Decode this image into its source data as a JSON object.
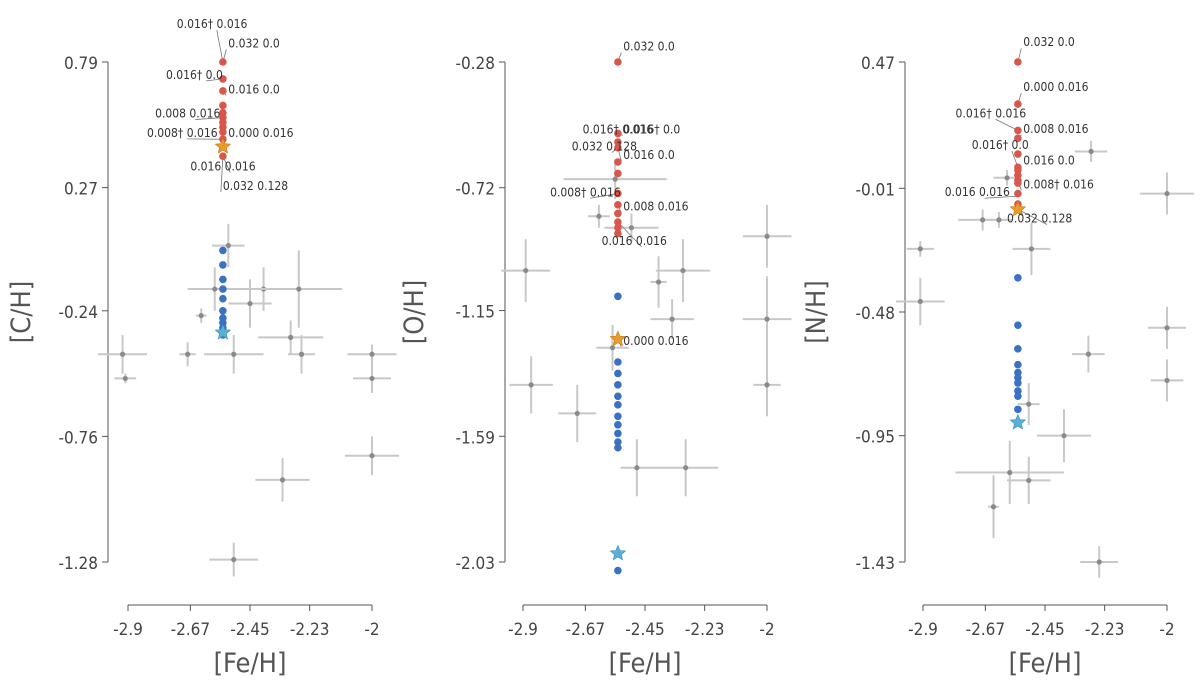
{
  "chart_data": [
    {
      "type": "scatter",
      "xlabel": "[Fe/H]",
      "ylabel": "[C/H]",
      "xticks": [
        -2.9,
        -2.67,
        -2.45,
        -2.23,
        -2
      ],
      "xtick_labels": [
        "-2.9",
        "-2.67",
        "-2.45",
        "-2.23",
        "-2"
      ],
      "yticks": [
        0.79,
        0.27,
        -0.24,
        -0.76,
        -1.28
      ],
      "ytick_labels": [
        "0.79",
        "0.27",
        "-0.24",
        "-0.76",
        "-1.28"
      ],
      "xlim": [
        -2.98,
        -1.95
      ],
      "ylim": [
        -1.38,
        0.95
      ],
      "observations": [
        {
          "x": -2.53,
          "y": 0.03,
          "xerr": 0.06,
          "yerr": 0.09
        },
        {
          "x": -2.4,
          "y": -0.15,
          "xerr": 0.09,
          "yerr": 0.09
        },
        {
          "x": -2.45,
          "y": -0.21,
          "xerr": 0.08,
          "yerr": 0.1
        },
        {
          "x": -2.27,
          "y": -0.15,
          "xerr": 0.16,
          "yerr": 0.16
        },
        {
          "x": -2.58,
          "y": -0.15,
          "xerr": 0.1,
          "yerr": 0.09
        },
        {
          "x": -2.63,
          "y": -0.26,
          "xerr": 0.02,
          "yerr": 0.03
        },
        {
          "x": -2.92,
          "y": -0.42,
          "xerr": 0.09,
          "yerr": 0.08
        },
        {
          "x": -2.68,
          "y": -0.42,
          "xerr": 0.03,
          "yerr": 0.05
        },
        {
          "x": -2.51,
          "y": -0.42,
          "xerr": 0.11,
          "yerr": 0.08
        },
        {
          "x": -2.3,
          "y": -0.35,
          "xerr": 0.12,
          "yerr": 0.07
        },
        {
          "x": -2.26,
          "y": -0.42,
          "xerr": 0.05,
          "yerr": 0.08
        },
        {
          "x": -2.0,
          "y": -0.42,
          "xerr": 0.09,
          "yerr": 0.04
        },
        {
          "x": -2.91,
          "y": -0.52,
          "xerr": 0.04,
          "yerr": 0.02
        },
        {
          "x": -2.0,
          "y": -0.52,
          "xerr": 0.07,
          "yerr": 0.06
        },
        {
          "x": -2.0,
          "y": -0.84,
          "xerr": 0.1,
          "yerr": 0.08
        },
        {
          "x": -2.33,
          "y": -0.94,
          "xerr": 0.1,
          "yerr": 0.09
        },
        {
          "x": -2.51,
          "y": -1.27,
          "xerr": 0.09,
          "yerr": 0.07
        }
      ],
      "model_red": [
        0.79,
        0.72,
        0.67,
        0.61,
        0.58,
        0.56,
        0.54,
        0.52,
        0.5,
        0.47,
        0.44,
        0.4
      ],
      "model_blue": [
        0.01,
        -0.05,
        -0.11,
        -0.15,
        -0.19,
        -0.24,
        -0.27,
        -0.29,
        -0.31,
        -0.34
      ],
      "model_x": -2.55,
      "star_orange": {
        "x": -2.55,
        "y": 0.44
      },
      "star_blue": {
        "x": -2.55,
        "y": -0.33
      },
      "annotations": [
        {
          "text": "0.016† 0.016",
          "x": -2.55,
          "y": 0.79,
          "tx": -2.72,
          "ty": 0.93
        },
        {
          "text": "0.032 0.0",
          "x": -2.55,
          "y": 0.79,
          "tx": -2.53,
          "ty": 0.85
        },
        {
          "text": "0.016† 0.0",
          "x": -2.55,
          "y": 0.72,
          "tx": -2.76,
          "ty": 0.72
        },
        {
          "text": "0.016 0.0",
          "x": -2.55,
          "y": 0.67,
          "tx": -2.53,
          "ty": 0.66
        },
        {
          "text": "0.008 0.016",
          "x": -2.55,
          "y": 0.56,
          "tx": -2.8,
          "ty": 0.56
        },
        {
          "text": "0.008† 0.016",
          "x": -2.55,
          "y": 0.47,
          "tx": -2.83,
          "ty": 0.48
        },
        {
          "text": "0.000 0.016",
          "x": -2.55,
          "y": 0.47,
          "tx": -2.53,
          "ty": 0.48
        },
        {
          "text": "0.016 0.016",
          "x": -2.55,
          "y": 0.4,
          "tx": -2.67,
          "ty": 0.34
        },
        {
          "text": "0.032 0.128",
          "x": -2.55,
          "y": 0.4,
          "tx": -2.55,
          "ty": 0.26
        }
      ]
    },
    {
      "type": "scatter",
      "xlabel": "[Fe/H]",
      "ylabel": "[O/H]",
      "xticks": [
        -2.9,
        -2.67,
        -2.45,
        -2.23,
        -2
      ],
      "xtick_labels": [
        "-2.9",
        "-2.67",
        "-2.45",
        "-2.23",
        "-2"
      ],
      "yticks": [
        -0.28,
        -0.72,
        -1.15,
        -1.59,
        -2.03
      ],
      "ytick_labels": [
        "-0.28",
        "-0.72",
        "-1.15",
        "-1.59",
        "-2.03"
      ],
      "xlim": [
        -2.98,
        -1.95
      ],
      "ylim": [
        -2.17,
        -0.14
      ],
      "observations": [
        {
          "x": -2.56,
          "y": -0.69,
          "xerr": 0.19,
          "yerr": 0.07
        },
        {
          "x": -2.62,
          "y": -0.82,
          "xerr": 0.04,
          "yerr": 0.04
        },
        {
          "x": -2.5,
          "y": -0.86,
          "xerr": 0.1,
          "yerr": 0.05
        },
        {
          "x": -2.0,
          "y": -0.89,
          "xerr": 0.09,
          "yerr": 0.11
        },
        {
          "x": -2.89,
          "y": -1.01,
          "xerr": 0.09,
          "yerr": 0.11
        },
        {
          "x": -2.31,
          "y": -1.01,
          "xerr": 0.1,
          "yerr": 0.11
        },
        {
          "x": -2.4,
          "y": -1.05,
          "xerr": 0.03,
          "yerr": 0.09
        },
        {
          "x": -2.35,
          "y": -1.18,
          "xerr": 0.08,
          "yerr": 0.07
        },
        {
          "x": -2.0,
          "y": -1.18,
          "xerr": 0.09,
          "yerr": 0.15
        },
        {
          "x": -2.57,
          "y": -1.28,
          "xerr": 0.06,
          "yerr": 0.08
        },
        {
          "x": -2.87,
          "y": -1.41,
          "xerr": 0.08,
          "yerr": 0.1
        },
        {
          "x": -2.0,
          "y": -1.41,
          "xerr": 0.05,
          "yerr": 0.11
        },
        {
          "x": -2.7,
          "y": -1.51,
          "xerr": 0.07,
          "yerr": 0.1
        },
        {
          "x": -2.48,
          "y": -1.7,
          "xerr": 0.06,
          "yerr": 0.1
        },
        {
          "x": -2.3,
          "y": -1.7,
          "xerr": 0.12,
          "yerr": 0.1
        }
      ],
      "model_red": [
        -0.28,
        -0.53,
        -0.56,
        -0.58,
        -0.63,
        -0.67,
        -0.74,
        -0.78,
        -0.81,
        -0.84,
        -0.86,
        -0.88
      ],
      "model_blue": [
        -1.1,
        -1.33,
        -1.37,
        -1.41,
        -1.45,
        -1.48,
        -1.52,
        -1.55,
        -1.58,
        -1.61,
        -1.63,
        -2.06
      ],
      "model_x": -2.55,
      "star_orange": {
        "x": -2.55,
        "y": -1.25
      },
      "star_blue": {
        "x": -2.55,
        "y": -2.0
      },
      "annotations": [
        {
          "text": "0.032 0.0",
          "x": -2.55,
          "y": -0.28,
          "tx": -2.53,
          "ty": -0.24
        },
        {
          "text": "0.016† 0.016",
          "x": -2.55,
          "y": -0.53,
          "tx": -2.68,
          "ty": -0.53
        },
        {
          "text": "0.016† 0.0",
          "x": -2.55,
          "y": -0.53,
          "tx": -2.53,
          "ty": -0.53
        },
        {
          "text": "0.032 0.128",
          "x": -2.55,
          "y": -0.58,
          "tx": -2.72,
          "ty": -0.59
        },
        {
          "text": "0.016 0.0",
          "x": -2.55,
          "y": -0.58,
          "tx": -2.53,
          "ty": -0.62
        },
        {
          "text": "0.008† 0.016",
          "x": -2.55,
          "y": -0.74,
          "tx": -2.8,
          "ty": -0.75
        },
        {
          "text": "0.008 0.016",
          "x": -2.55,
          "y": -0.78,
          "tx": -2.53,
          "ty": -0.8
        },
        {
          "text": "0.016 0.016",
          "x": -2.55,
          "y": -0.84,
          "tx": -2.61,
          "ty": -0.92
        },
        {
          "text": "0.000 0.016",
          "x": -2.55,
          "y": -1.25,
          "tx": -2.53,
          "ty": -1.27
        }
      ]
    },
    {
      "type": "scatter",
      "xlabel": "[Fe/H]",
      "ylabel": "[N/H]",
      "xticks": [
        -2.9,
        -2.67,
        -2.45,
        -2.23,
        -2
      ],
      "xtick_labels": [
        "-2.9",
        "-2.67",
        "-2.45",
        "-2.23",
        "-2"
      ],
      "yticks": [
        0.47,
        -0.01,
        -0.48,
        -0.95,
        -1.43
      ],
      "ytick_labels": [
        "0.47",
        "-0.01",
        "-0.48",
        "-0.95",
        "-1.43"
      ],
      "xlim": [
        -2.98,
        -1.95
      ],
      "ylim": [
        -1.58,
        0.62
      ],
      "observations": [
        {
          "x": -2.28,
          "y": 0.13,
          "xerr": 0.06,
          "yerr": 0.04
        },
        {
          "x": -2.59,
          "y": 0.03,
          "xerr": 0.05,
          "yerr": 0.03
        },
        {
          "x": -2.0,
          "y": -0.03,
          "xerr": 0.1,
          "yerr": 0.08
        },
        {
          "x": -2.68,
          "y": -0.13,
          "xerr": 0.09,
          "yerr": 0.04
        },
        {
          "x": -2.62,
          "y": -0.13,
          "xerr": 0.05,
          "yerr": 0.03
        },
        {
          "x": -2.91,
          "y": -0.24,
          "xerr": 0.05,
          "yerr": 0.03
        },
        {
          "x": -2.5,
          "y": -0.24,
          "xerr": 0.07,
          "yerr": 0.1
        },
        {
          "x": -2.91,
          "y": -0.44,
          "xerr": 0.09,
          "yerr": 0.09
        },
        {
          "x": -2.0,
          "y": -0.54,
          "xerr": 0.07,
          "yerr": 0.08
        },
        {
          "x": -2.29,
          "y": -0.64,
          "xerr": 0.06,
          "yerr": 0.07
        },
        {
          "x": -2.0,
          "y": -0.74,
          "xerr": 0.06,
          "yerr": 0.08
        },
        {
          "x": -2.51,
          "y": -0.83,
          "xerr": 0.04,
          "yerr": 0.08
        },
        {
          "x": -2.38,
          "y": -0.95,
          "xerr": 0.1,
          "yerr": 0.1
        },
        {
          "x": -2.58,
          "y": -1.09,
          "xerr": 0.2,
          "yerr": 0.12
        },
        {
          "x": -2.51,
          "y": -1.12,
          "xerr": 0.08,
          "yerr": 0.09
        },
        {
          "x": -2.64,
          "y": -1.22,
          "xerr": 0.02,
          "yerr": 0.12
        },
        {
          "x": -2.25,
          "y": -1.43,
          "xerr": 0.07,
          "yerr": 0.06
        }
      ],
      "model_red": [
        0.47,
        0.31,
        0.21,
        0.18,
        0.12,
        0.07,
        0.06,
        0.04,
        0.02,
        0.01,
        -0.03,
        -0.07
      ],
      "model_blue": [
        -0.35,
        -0.53,
        -0.62,
        -0.68,
        -0.71,
        -0.73,
        -0.75,
        -0.78,
        -0.8,
        -0.85
      ],
      "model_x": -2.55,
      "star_orange": {
        "x": -2.55,
        "y": -0.09
      },
      "star_blue": {
        "x": -2.55,
        "y": -0.9
      },
      "annotations": [
        {
          "text": "0.032 0.0",
          "x": -2.55,
          "y": 0.47,
          "tx": -2.53,
          "ty": 0.53
        },
        {
          "text": "0.000 0.016",
          "x": -2.55,
          "y": 0.31,
          "tx": -2.53,
          "ty": 0.36
        },
        {
          "text": "0.016† 0.016",
          "x": -2.55,
          "y": 0.21,
          "tx": -2.78,
          "ty": 0.26
        },
        {
          "text": "0.008 0.016",
          "x": -2.55,
          "y": 0.18,
          "tx": -2.53,
          "ty": 0.2
        },
        {
          "text": "0.016† 0.0",
          "x": -2.55,
          "y": 0.07,
          "tx": -2.72,
          "ty": 0.14
        },
        {
          "text": "0.016 0.0",
          "x": -2.55,
          "y": 0.06,
          "tx": -2.53,
          "ty": 0.08
        },
        {
          "text": "0.008† 0.016",
          "x": -2.55,
          "y": 0.02,
          "tx": -2.53,
          "ty": -0.01
        },
        {
          "text": "0.016 0.016",
          "x": -2.55,
          "y": -0.04,
          "tx": -2.82,
          "ty": -0.04
        },
        {
          "text": "0.032 0.128",
          "x": -2.55,
          "y": -0.09,
          "tx": -2.59,
          "ty": -0.14
        }
      ]
    }
  ],
  "colors": {
    "red": "#d9564b",
    "blue": "#3a72c2",
    "star_orange": "#e89b2c",
    "star_blue": "#58b0d8",
    "observation": "#8a8a8a",
    "errorbar": "#c8c8c8",
    "axis": "#555555"
  }
}
